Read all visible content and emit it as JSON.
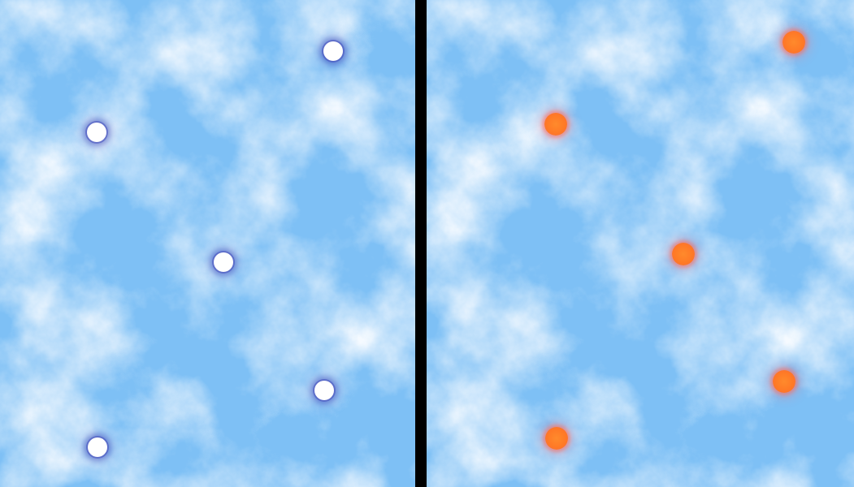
{
  "scene": {
    "background_color": "#7ec0f5",
    "cloud_color": "#f4f9fe",
    "divider_color": "#000000"
  },
  "left_panel": {
    "marker_color": "#ffffff",
    "marker_glow_color": "#3c46b4",
    "markers": [
      {
        "name": "white-dot-1"
      },
      {
        "name": "white-dot-2"
      },
      {
        "name": "white-dot-3"
      },
      {
        "name": "white-dot-4"
      },
      {
        "name": "white-dot-5"
      }
    ]
  },
  "right_panel": {
    "marker_color": "#ff7a26",
    "marker_glow_color": "#ff6e8c",
    "markers": [
      {
        "name": "orange-dot-1"
      },
      {
        "name": "orange-dot-2"
      },
      {
        "name": "orange-dot-3"
      },
      {
        "name": "orange-dot-4"
      },
      {
        "name": "orange-dot-5"
      }
    ]
  }
}
